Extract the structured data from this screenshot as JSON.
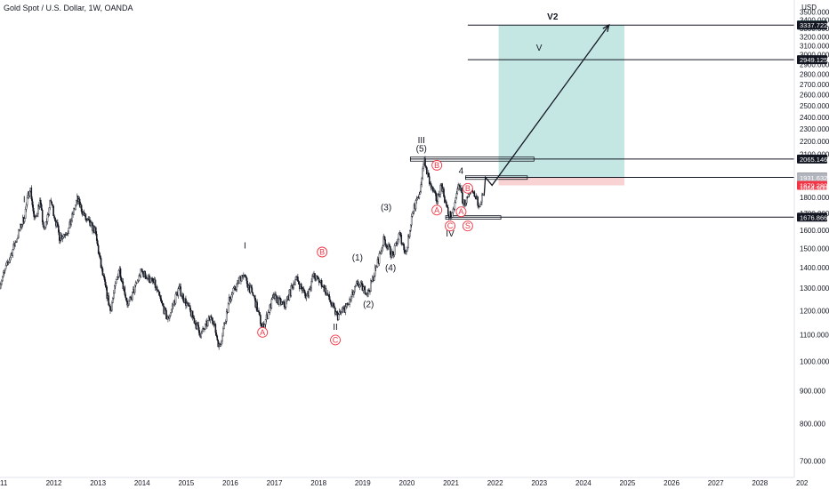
{
  "header": {
    "title": "Gold Spot / U.S. Dollar, 1W, OANDA",
    "currency": "USD"
  },
  "chart_data": {
    "type": "candlestick",
    "symbol": "Gold Spot / U.S. Dollar",
    "interval": "1W",
    "source": "OANDA",
    "y_scale": "log",
    "ylim": [
      660,
      3560
    ],
    "xlim": [
      2011.0,
      2029.0
    ],
    "y_ticks": [
      "3500.000",
      "3400.000",
      "3300.000",
      "3200.000",
      "3100.000",
      "3000.000",
      "2900.000",
      "2800.000",
      "2700.000",
      "2600.000",
      "2500.000",
      "2400.000",
      "2300.000",
      "2200.000",
      "2100.000",
      "1800.000",
      "1700.000",
      "1600.000",
      "1500.000",
      "1400.000",
      "1300.000",
      "1200.000",
      "1100.000",
      "1000.000",
      "900.000",
      "800.000",
      "700.000"
    ],
    "x_ticks": [
      "11",
      "2012",
      "2013",
      "2014",
      "2015",
      "2016",
      "2017",
      "2018",
      "2019",
      "2020",
      "2021",
      "2022",
      "2023",
      "2024",
      "2025",
      "2026",
      "2027",
      "2028",
      "202"
    ],
    "price_path": [
      [
        2011.0,
        1320
      ],
      [
        2011.3,
        1500
      ],
      [
        2011.55,
        1680
      ],
      [
        2011.68,
        1880
      ],
      [
        2011.78,
        1650
      ],
      [
        2011.9,
        1780
      ],
      [
        2012.0,
        1590
      ],
      [
        2012.15,
        1780
      ],
      [
        2012.35,
        1560
      ],
      [
        2012.55,
        1600
      ],
      [
        2012.75,
        1790
      ],
      [
        2012.95,
        1660
      ],
      [
        2013.15,
        1600
      ],
      [
        2013.3,
        1390
      ],
      [
        2013.5,
        1200
      ],
      [
        2013.7,
        1400
      ],
      [
        2013.9,
        1220
      ],
      [
        2014.2,
        1380
      ],
      [
        2014.5,
        1320
      ],
      [
        2014.8,
        1160
      ],
      [
        2015.05,
        1300
      ],
      [
        2015.3,
        1200
      ],
      [
        2015.55,
        1100
      ],
      [
        2015.8,
        1180
      ],
      [
        2015.97,
        1050
      ],
      [
        2016.2,
        1250
      ],
      [
        2016.5,
        1370
      ],
      [
        2016.75,
        1260
      ],
      [
        2016.95,
        1125
      ],
      [
        2017.2,
        1260
      ],
      [
        2017.45,
        1220
      ],
      [
        2017.7,
        1350
      ],
      [
        2017.95,
        1260
      ],
      [
        2018.1,
        1360
      ],
      [
        2018.3,
        1320
      ],
      [
        2018.55,
        1210
      ],
      [
        2018.65,
        1175
      ],
      [
        2018.9,
        1230
      ],
      [
        2019.1,
        1320
      ],
      [
        2019.35,
        1280
      ],
      [
        2019.55,
        1420
      ],
      [
        2019.7,
        1550
      ],
      [
        2019.9,
        1460
      ],
      [
        2020.05,
        1580
      ],
      [
        2020.2,
        1470
      ],
      [
        2020.35,
        1720
      ],
      [
        2020.5,
        1800
      ],
      [
        2020.6,
        2060
      ],
      [
        2020.75,
        1880
      ],
      [
        2020.9,
        1780
      ],
      [
        2021.0,
        1890
      ],
      [
        2021.15,
        1700
      ],
      [
        2021.25,
        1680
      ],
      [
        2021.4,
        1900
      ],
      [
        2021.5,
        1760
      ],
      [
        2021.7,
        1830
      ],
      [
        2021.85,
        1760
      ],
      [
        2021.95,
        1810
      ]
    ],
    "projection": {
      "path": [
        [
          2022.0,
          1935
        ],
        [
          2022.15,
          1880
        ],
        [
          2024.8,
          3338.961
        ]
      ],
      "labels": [
        "V",
        "V2"
      ]
    },
    "horizontal_levels": [
      3337.722,
      2949.125,
      2065.146,
      1934.234,
      1676.866
    ],
    "price_labels": [
      {
        "value": 3338.961,
        "text": "3338.961",
        "color": "#26a69a"
      },
      {
        "value": 3337.722,
        "text": "3337.722",
        "color": "#131722"
      },
      {
        "value": 2949.125,
        "text": "2949.125",
        "color": "#131722"
      },
      {
        "value": 2065.146,
        "text": "2065.146",
        "color": "#131722"
      },
      {
        "value": 1934.234,
        "text": "1934.234",
        "color": "#131722"
      },
      {
        "value": 1931.632,
        "text": "1931.632",
        "color": "#b2b5be"
      },
      {
        "value": 1879.28,
        "text": "1879.280",
        "color": "#f23645"
      },
      {
        "value": 1864.9,
        "text": "1864.900",
        "color": "none"
      },
      {
        "value": 1676.866,
        "text": "1676.866",
        "color": "#131722"
      }
    ],
    "position_tool": {
      "x_start": 2022.3,
      "x_end": 2025.15,
      "entry": 1934.234,
      "target": 3338.961,
      "stop": 1879.28,
      "profit_color": "#b2dfdb",
      "loss_color": "#f8c8c8"
    },
    "zones": [
      {
        "x0": 2020.3,
        "x1": 2023.1,
        "y_low": 2050,
        "y_high": 2080
      },
      {
        "x0": 2021.55,
        "x1": 2022.95,
        "y_low": 1922,
        "y_high": 1945
      },
      {
        "x0": 2021.1,
        "x1": 2022.35,
        "y_low": 1668,
        "y_high": 1686
      }
    ],
    "wave_labels_black": [
      {
        "text": "I",
        "x": 2016.55,
        "y": 1500
      },
      {
        "text": "II",
        "x": 2018.6,
        "y": 1120
      },
      {
        "text": "III",
        "x": 2020.55,
        "y": 2185
      },
      {
        "text": "(5)",
        "x": 2020.55,
        "y": 2120
      },
      {
        "text": "IV",
        "x": 2021.2,
        "y": 1565
      },
      {
        "text": "(1)",
        "x": 2019.1,
        "y": 1435
      },
      {
        "text": "(2)",
        "x": 2019.35,
        "y": 1215
      },
      {
        "text": "(3)",
        "x": 2019.75,
        "y": 1720
      },
      {
        "text": "(4)",
        "x": 2019.85,
        "y": 1385
      },
      {
        "text": "4",
        "x": 2021.45,
        "y": 1960
      },
      {
        "text": "I",
        "x": 2011.55,
        "y": 1770
      }
    ],
    "wave_labels_red": [
      {
        "text": "A",
        "x": 2016.95,
        "y": 1110
      },
      {
        "text": "B",
        "x": 2018.3,
        "y": 1480
      },
      {
        "text": "C",
        "x": 2018.6,
        "y": 1080
      },
      {
        "text": "B",
        "x": 2020.9,
        "y": 2020
      },
      {
        "text": "A",
        "x": 2020.9,
        "y": 1720
      },
      {
        "text": "C",
        "x": 2021.2,
        "y": 1625
      },
      {
        "text": "A",
        "x": 2021.45,
        "y": 1710
      },
      {
        "text": "B",
        "x": 2021.6,
        "y": 1860
      },
      {
        "text": "S",
        "x": 2021.6,
        "y": 1625
      }
    ]
  }
}
